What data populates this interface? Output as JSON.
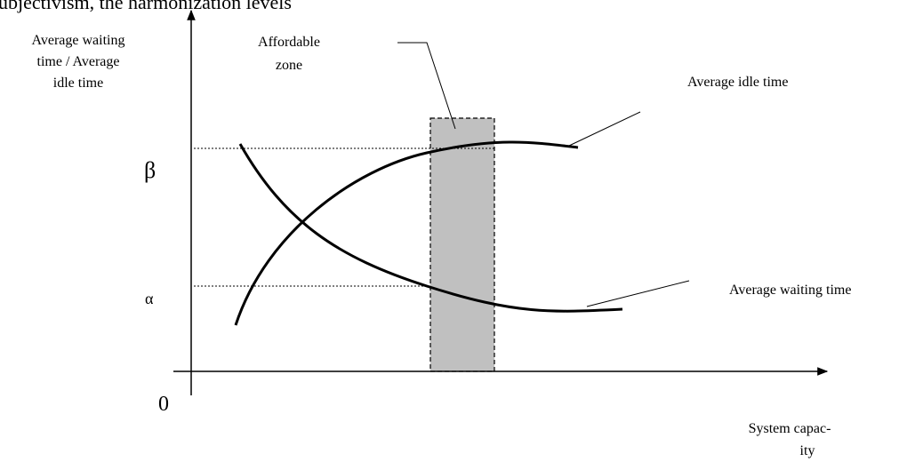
{
  "header_fragment": "ubjectivism, the harmonization levels",
  "y_axis_label": [
    "Average waiting time / Average",
    "idle time"
  ],
  "y_axis_label_first": [
    "Average waiting",
    "time / Average"
  ],
  "zone_label": [
    "Affordable",
    "zone"
  ],
  "curves": [
    {
      "label": "Average idle time"
    },
    {
      "label": "Average waiting time"
    }
  ],
  "levels": [
    {
      "label": "β"
    },
    {
      "label": "α"
    }
  ],
  "origin_label": "0",
  "x_axis_label": [
    "System capac-",
    "ity"
  ]
}
